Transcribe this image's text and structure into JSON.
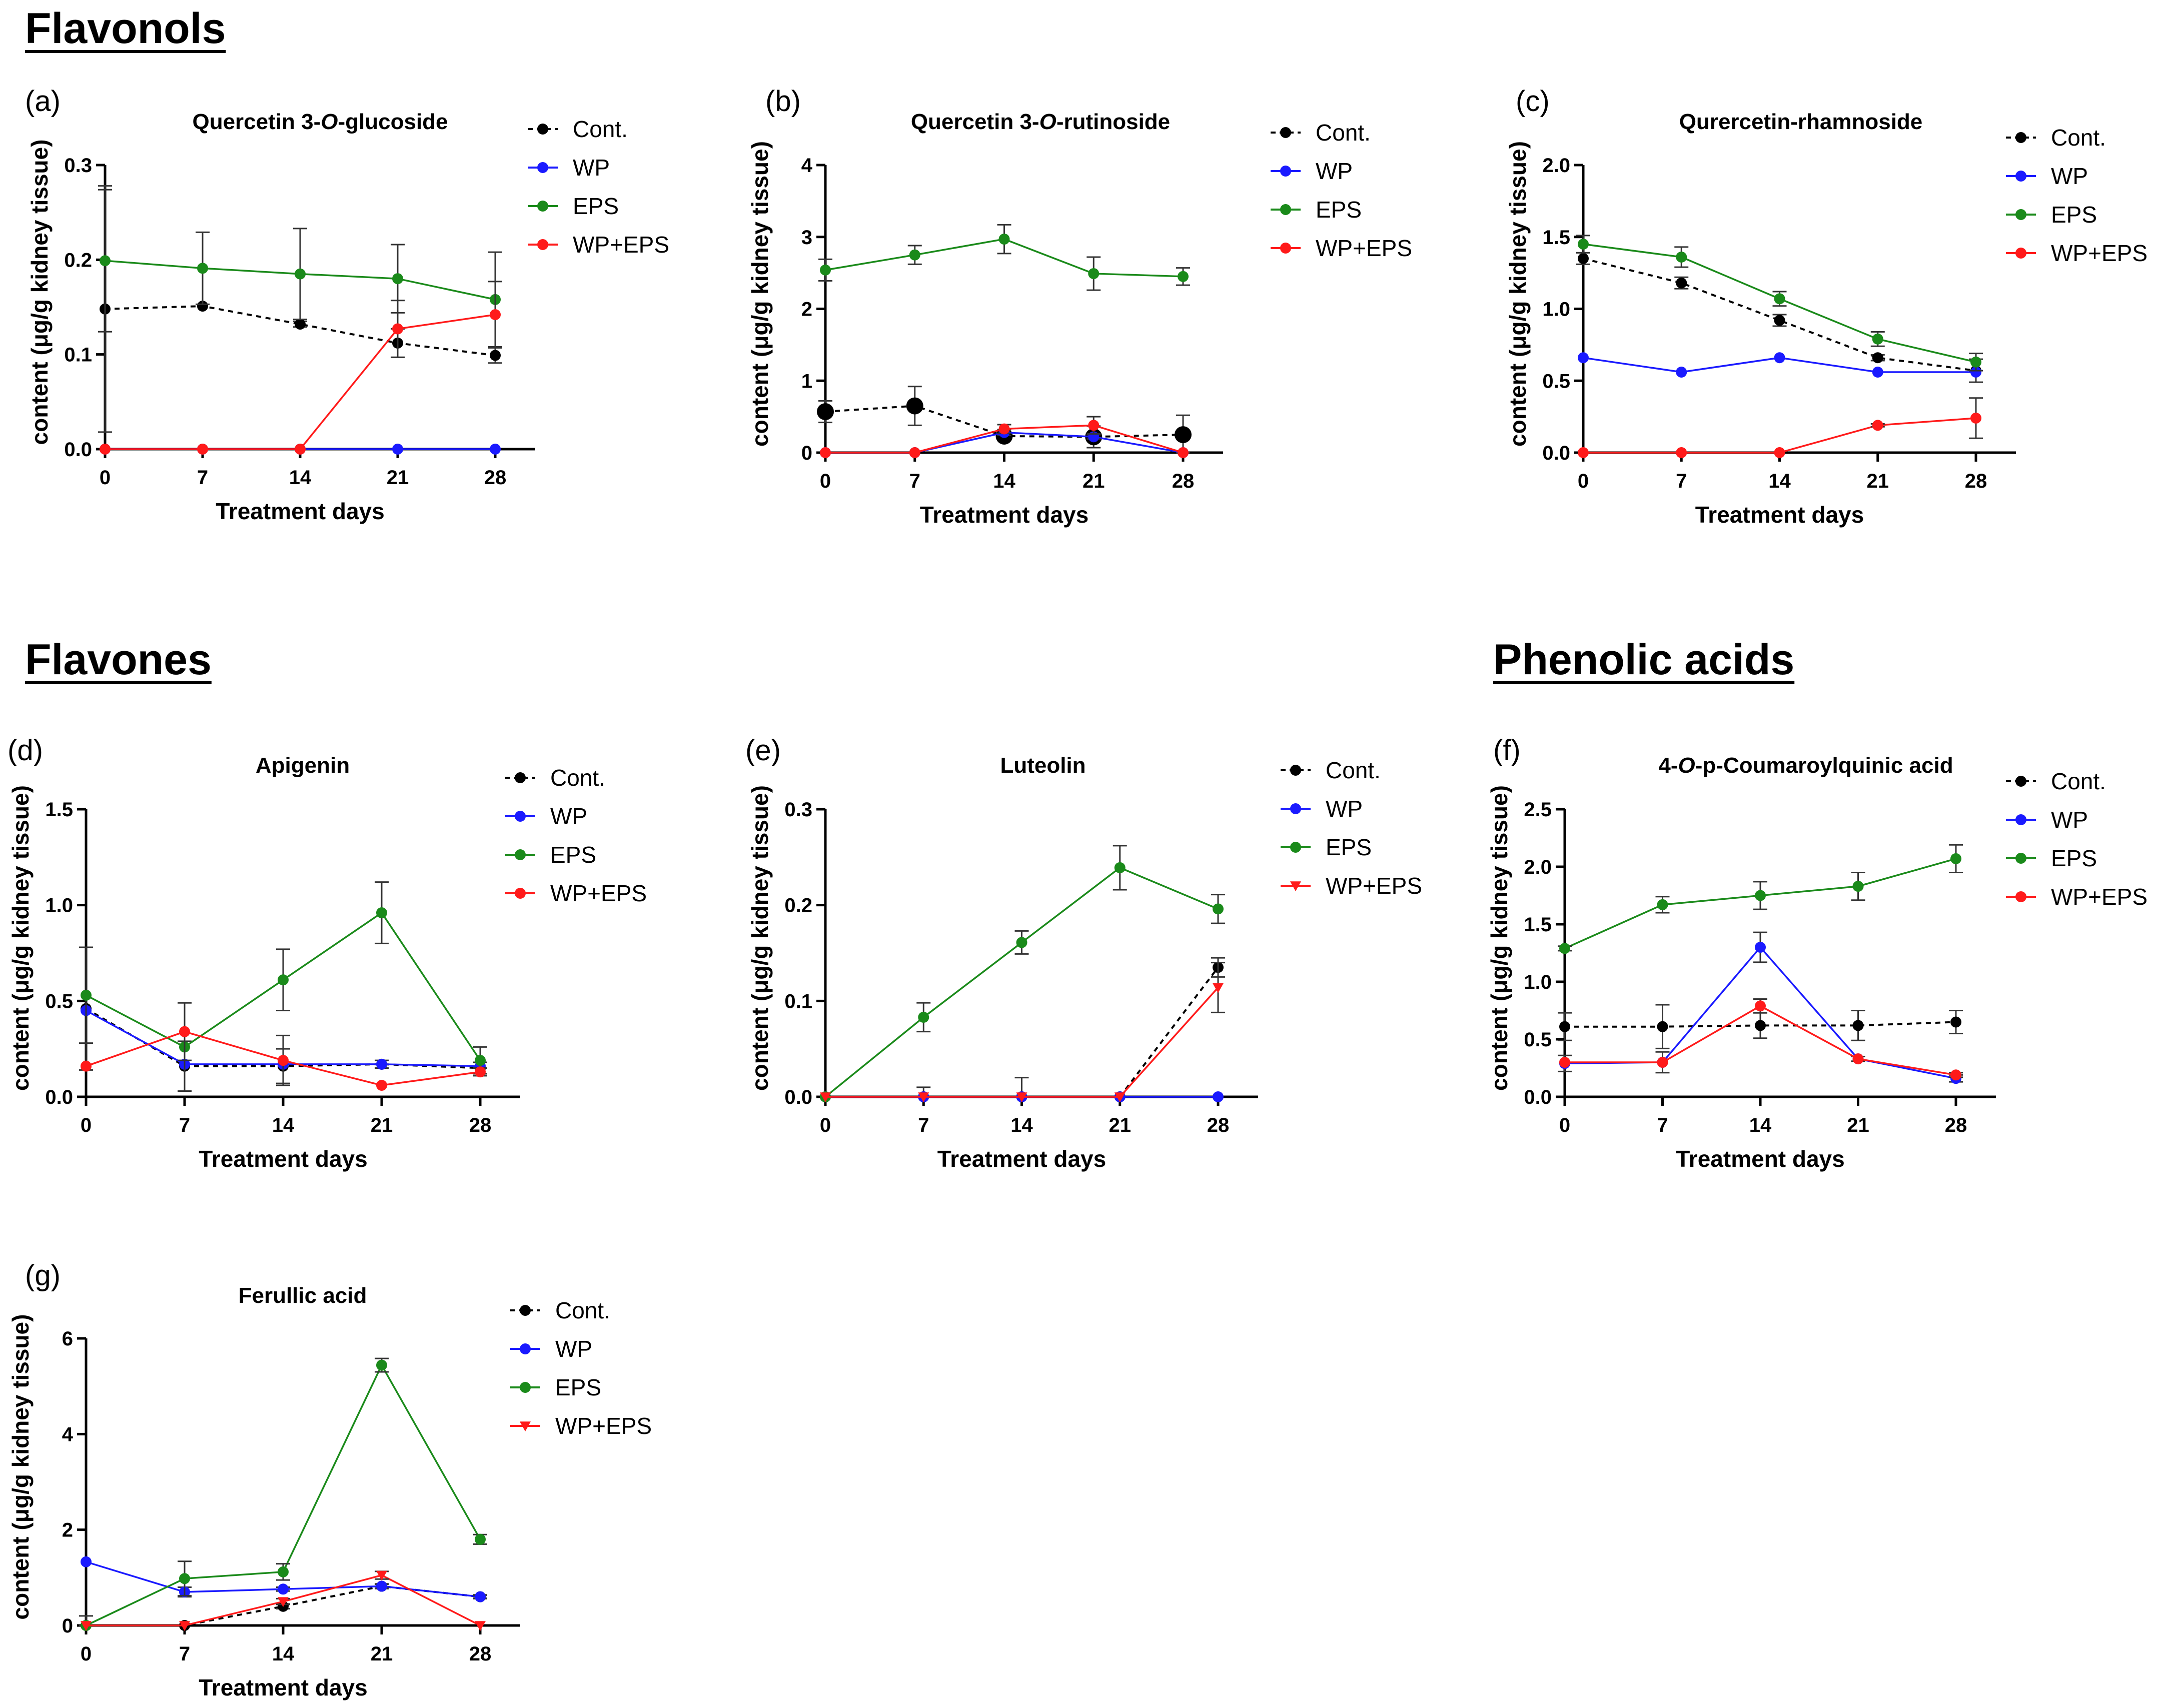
{
  "sections": {
    "flavonols": "Flavonols",
    "flavones": "Flavones",
    "phenolic_acids": "Phenolic acids"
  },
  "colors": {
    "Cont.": "#000000",
    "WP": "#1a1aff",
    "EPS": "#1a8a1a",
    "WP+EPS": "#ff1a1a"
  },
  "chart_data": [
    {
      "panel": "(a)",
      "type": "line",
      "title": "Quercetin 3-O-glucoside",
      "xlabel": "Treatment days",
      "ylabel": "content (μg/g kidney tissue)",
      "x": [
        0,
        7,
        14,
        21,
        28
      ],
      "xticks": [
        "0",
        "7",
        "14",
        "21",
        "28"
      ],
      "ylim": [
        0,
        0.3
      ],
      "yticks": [
        "0.0",
        "0.1",
        "0.2",
        "0.3"
      ],
      "legend": [
        "Cont.",
        "WP",
        "EPS",
        "WP+EPS"
      ],
      "series": [
        {
          "name": "Cont.",
          "values": [
            0.148,
            0.151,
            0.132,
            0.112,
            0.099
          ],
          "err": [
            0.13,
            0,
            0.003,
            0.015,
            0.008
          ]
        },
        {
          "name": "WP",
          "values": [
            0,
            0,
            0,
            0,
            0
          ],
          "err": [
            0,
            0,
            0,
            0,
            0
          ]
        },
        {
          "name": "EPS",
          "values": [
            0.199,
            0.191,
            0.185,
            0.18,
            0.158
          ],
          "err": [
            0.075,
            0.038,
            0.048,
            0.036,
            0.05
          ]
        },
        {
          "name": "WP+EPS",
          "values": [
            0,
            0,
            0,
            0.127,
            0.142
          ],
          "err": [
            0,
            0,
            0,
            0.03,
            0.035
          ]
        }
      ]
    },
    {
      "panel": "(b)",
      "type": "line",
      "title": "Quercetin 3-O-rutinoside",
      "xlabel": "Treatment days",
      "ylabel": "content (μg/g kidney tissue)",
      "x": [
        0,
        7,
        14,
        21,
        28
      ],
      "xticks": [
        "0",
        "7",
        "14",
        "21",
        "28"
      ],
      "ylim": [
        0,
        4
      ],
      "yticks": [
        "0",
        "1",
        "2",
        "3",
        "4"
      ],
      "legend": [
        "Cont.",
        "WP",
        "EPS",
        "WP+EPS"
      ],
      "series": [
        {
          "name": "Cont.",
          "values": [
            0.57,
            0.65,
            0.23,
            0.22,
            0.25
          ],
          "err": [
            0.15,
            0.27,
            0.05,
            0.15,
            0.27
          ]
        },
        {
          "name": "WP",
          "values": [
            0,
            0,
            0.28,
            0.22,
            0
          ],
          "err": [
            0,
            0,
            0.04,
            0.03,
            0
          ]
        },
        {
          "name": "EPS",
          "values": [
            2.54,
            2.75,
            2.97,
            2.49,
            2.45
          ],
          "err": [
            0.15,
            0.13,
            0.2,
            0.23,
            0.12
          ]
        },
        {
          "name": "WP+EPS",
          "values": [
            0,
            0,
            0.33,
            0.38,
            0
          ],
          "err": [
            0,
            0,
            0.06,
            0.12,
            0
          ]
        }
      ]
    },
    {
      "panel": "(c)",
      "type": "line",
      "title": "Qurercetin-rhamnoside",
      "xlabel": "Treatment days",
      "ylabel": "content (μg/g kidney tissue)",
      "x": [
        0,
        7,
        14,
        21,
        28
      ],
      "xticks": [
        "0",
        "7",
        "14",
        "21",
        "28"
      ],
      "ylim": [
        0,
        2.0
      ],
      "yticks": [
        "0.0",
        "0.5",
        "1.0",
        "1.5",
        "2.0"
      ],
      "legend": [
        "Cont.",
        "WP",
        "EPS",
        "WP+EPS"
      ],
      "series": [
        {
          "name": "Cont.",
          "values": [
            1.35,
            1.18,
            0.92,
            0.66,
            0.57
          ],
          "err": [
            0.04,
            0.04,
            0.04,
            0.02,
            0.08
          ]
        },
        {
          "name": "WP",
          "values": [
            0.66,
            0.56,
            0.66,
            0.56,
            0.56
          ],
          "err": [
            0,
            0,
            0,
            0,
            0
          ]
        },
        {
          "name": "EPS",
          "values": [
            1.45,
            1.36,
            1.07,
            0.79,
            0.63
          ],
          "err": [
            0.06,
            0.07,
            0.05,
            0.05,
            0.06
          ]
        },
        {
          "name": "WP+EPS",
          "values": [
            0,
            0,
            0,
            0.19,
            0.24
          ],
          "err": [
            0,
            0,
            0,
            0.01,
            0.14
          ]
        }
      ]
    },
    {
      "panel": "(d)",
      "type": "line",
      "title": "Apigenin",
      "xlabel": "Treatment days",
      "ylabel": "content (μg/g kidney tissue)",
      "x": [
        0,
        7,
        14,
        21,
        28
      ],
      "xticks": [
        "0",
        "7",
        "14",
        "21",
        "28"
      ],
      "ylim": [
        0,
        1.5
      ],
      "yticks": [
        "0.0",
        "0.5",
        "1.0",
        "1.5"
      ],
      "legend": [
        "Cont.",
        "WP",
        "EPS",
        "WP+EPS"
      ],
      "series": [
        {
          "name": "Cont.",
          "values": [
            0.46,
            0.16,
            0.16,
            0.17,
            0.15
          ],
          "err": [
            0.32,
            0.13,
            0.09,
            0.02,
            0.03
          ]
        },
        {
          "name": "WP",
          "values": [
            0.45,
            0.17,
            0.17,
            0.17,
            0.16
          ],
          "err": [
            0,
            0,
            0,
            0,
            0
          ]
        },
        {
          "name": "EPS",
          "values": [
            0.53,
            0.26,
            0.61,
            0.96,
            0.19
          ],
          "err": [
            0.25,
            0.23,
            0.16,
            0.16,
            0.07
          ]
        },
        {
          "name": "WP+EPS",
          "values": [
            0.16,
            0.34,
            0.19,
            0.06,
            0.13
          ],
          "err": [
            0,
            0.15,
            0.13,
            0,
            0.02
          ]
        }
      ]
    },
    {
      "panel": "(e)",
      "type": "line",
      "title": "Luteolin",
      "xlabel": "Treatment days",
      "ylabel": "content (μg/g kidney tissue)",
      "x": [
        0,
        7,
        14,
        21,
        28
      ],
      "xticks": [
        "0",
        "7",
        "14",
        "21",
        "28"
      ],
      "ylim": [
        0,
        0.3
      ],
      "yticks": [
        "0.0",
        "0.1",
        "0.2",
        "0.3"
      ],
      "legend": [
        "Cont.",
        "WP",
        "EPS",
        "WP+EPS"
      ],
      "series": [
        {
          "name": "Cont.",
          "values": [
            0,
            0,
            0,
            0,
            0.135
          ],
          "err": [
            0,
            0.01,
            0.02,
            0,
            0.01
          ]
        },
        {
          "name": "WP",
          "values": [
            0,
            0,
            0,
            0,
            0
          ],
          "err": [
            0,
            0,
            0,
            0,
            0
          ]
        },
        {
          "name": "EPS",
          "values": [
            0,
            0.083,
            0.161,
            0.239,
            0.196
          ],
          "err": [
            0,
            0.015,
            0.012,
            0.023,
            0.015
          ]
        },
        {
          "name": "WP+EPS",
          "values": [
            0,
            0,
            0,
            0,
            0.114
          ],
          "err": [
            0,
            0,
            0,
            0,
            0.026
          ]
        }
      ]
    },
    {
      "panel": "(f)",
      "type": "line",
      "title": "4-O-p-Coumaroylquinic acid",
      "xlabel": "Treatment days",
      "ylabel": "content (μg/g kidney tissue)",
      "x": [
        0,
        7,
        14,
        21,
        28
      ],
      "xticks": [
        "0",
        "7",
        "14",
        "21",
        "28"
      ],
      "ylim": [
        0,
        2.5
      ],
      "yticks": [
        "0.0",
        "0.5",
        "1.0",
        "1.5",
        "2.0",
        "2.5"
      ],
      "legend": [
        "Cont.",
        "WP",
        "EPS",
        "WP+EPS"
      ],
      "series": [
        {
          "name": "Cont.",
          "values": [
            0.61,
            0.61,
            0.62,
            0.62,
            0.65
          ],
          "err": [
            0.12,
            0.19,
            0.11,
            0.13,
            0.1
          ]
        },
        {
          "name": "WP",
          "values": [
            0.29,
            0.3,
            1.3,
            0.33,
            0.16
          ],
          "err": [
            0.07,
            0.09,
            0.13,
            0.02,
            0.03
          ]
        },
        {
          "name": "EPS",
          "values": [
            1.29,
            1.67,
            1.75,
            1.83,
            2.07
          ],
          "err": [
            0.02,
            0.07,
            0.12,
            0.12,
            0.12
          ]
        },
        {
          "name": "WP+EPS",
          "values": [
            0.3,
            0.3,
            0.79,
            0.33,
            0.19
          ],
          "err": [
            0,
            0,
            0.06,
            0,
            0.02
          ]
        }
      ]
    },
    {
      "panel": "(g)",
      "type": "line",
      "title": "Ferullic acid",
      "xlabel": "Treatment days",
      "ylabel": "content (μg/g kidney tissue)",
      "x": [
        0,
        7,
        14,
        21,
        28
      ],
      "xticks": [
        "0",
        "7",
        "14",
        "21",
        "28"
      ],
      "ylim": [
        0,
        6
      ],
      "yticks": [
        "0",
        "2",
        "4",
        "6"
      ],
      "legend": [
        "Cont.",
        "WP",
        "EPS",
        "WP+EPS"
      ],
      "series": [
        {
          "name": "Cont.",
          "values": [
            0,
            0,
            0.4,
            0.82,
            0.6
          ],
          "err": [
            0.2,
            0,
            0.05,
            0.05,
            0.04
          ]
        },
        {
          "name": "WP",
          "values": [
            1.33,
            0.7,
            0.76,
            0.82,
            0.6
          ],
          "err": [
            0,
            0.1,
            0.04,
            0.04,
            0.03
          ]
        },
        {
          "name": "EPS",
          "values": [
            0,
            0.98,
            1.12,
            5.44,
            1.8
          ],
          "err": [
            0,
            0.36,
            0.17,
            0.14,
            0.1
          ]
        },
        {
          "name": "WP+EPS",
          "values": [
            0,
            0,
            0.5,
            1.05,
            0
          ],
          "err": [
            0,
            0,
            0.06,
            0.08,
            0
          ]
        }
      ]
    }
  ]
}
